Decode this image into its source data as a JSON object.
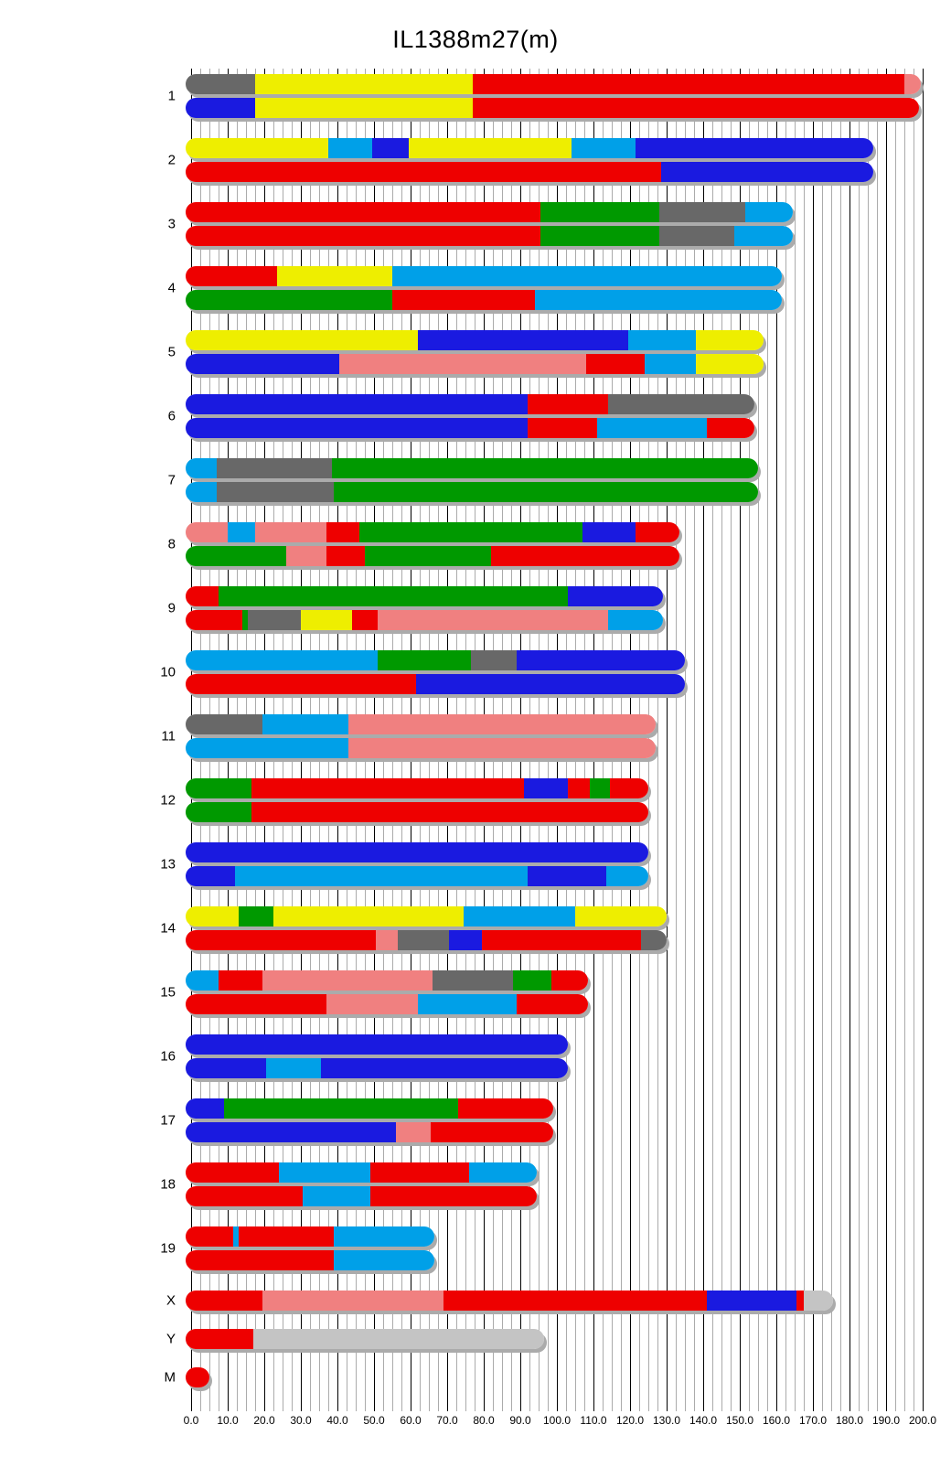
{
  "chart_data": {
    "type": "ideogram",
    "title": "IL1388m27(m)",
    "x_axis": {
      "min": 0,
      "max": 200,
      "minor_step": 2.5,
      "major_step": 10,
      "tick_labels": [
        "0.0",
        "10.0",
        "20.0",
        "30.0",
        "40.0",
        "50.0",
        "60.0",
        "70.0",
        "80.0",
        "90.0",
        "100.0",
        "110.0",
        "120.0",
        "130.0",
        "140.0",
        "150.0",
        "160.0",
        "170.0",
        "180.0",
        "190.0",
        "200.0"
      ],
      "minor_grid_color": "#ababab",
      "major_grid_color": "#000000"
    },
    "palette": {
      "red": "#ee0000",
      "blue": "#1a1ae0",
      "yellow": "#eeee00",
      "green": "#009900",
      "cyan": "#00a0e8",
      "pink": "#f08080",
      "gray": "#686868",
      "lightgray": "#c4c4c4"
    },
    "units": "Mb",
    "chromosomes": [
      {
        "name": "1",
        "bars": [
          [
            [
              "gray",
              0,
              17.5
            ],
            [
              "yellow",
              17.5,
              77
            ],
            [
              "red",
              77,
              195
            ],
            [
              "pink",
              195,
              198
            ]
          ],
          [
            [
              "blue",
              0,
              17.5
            ],
            [
              "yellow",
              17.5,
              77
            ],
            [
              "red",
              77,
              197.5
            ]
          ]
        ]
      },
      {
        "name": "2",
        "bars": [
          [
            [
              "yellow",
              0,
              37.5
            ],
            [
              "cyan",
              37.5,
              49.5
            ],
            [
              "blue",
              49.5,
              59.5
            ],
            [
              "yellow",
              59.5,
              104
            ],
            [
              "cyan",
              104,
              121.5
            ],
            [
              "blue",
              121.5,
              185
            ]
          ],
          [
            [
              "red",
              0,
              128.5
            ],
            [
              "blue",
              128.5,
              185
            ]
          ]
        ]
      },
      {
        "name": "3",
        "bars": [
          [
            [
              "red",
              0,
              95.5
            ],
            [
              "green",
              95.5,
              128
            ],
            [
              "gray",
              128,
              151.5
            ],
            [
              "cyan",
              151.5,
              163
            ]
          ],
          [
            [
              "red",
              0,
              95.5
            ],
            [
              "green",
              95.5,
              128
            ],
            [
              "gray",
              128,
              148.5
            ],
            [
              "cyan",
              148.5,
              163
            ]
          ]
        ]
      },
      {
        "name": "4",
        "bars": [
          [
            [
              "red",
              0,
              23.5
            ],
            [
              "yellow",
              23.5,
              55
            ],
            [
              "cyan",
              55,
              160
            ]
          ],
          [
            [
              "green",
              0,
              55
            ],
            [
              "red",
              55,
              94
            ],
            [
              "cyan",
              94,
              160
            ]
          ]
        ]
      },
      {
        "name": "5",
        "bars": [
          [
            [
              "yellow",
              0,
              62
            ],
            [
              "blue",
              62,
              119.5
            ],
            [
              "cyan",
              119.5,
              138
            ],
            [
              "yellow",
              138,
              155
            ]
          ],
          [
            [
              "blue",
              0,
              40.5
            ],
            [
              "pink",
              40.5,
              108
            ],
            [
              "red",
              108,
              124
            ],
            [
              "cyan",
              124,
              138
            ],
            [
              "yellow",
              138,
              155
            ]
          ]
        ]
      },
      {
        "name": "6",
        "bars": [
          [
            [
              "blue",
              0,
              92
            ],
            [
              "red",
              92,
              114
            ],
            [
              "gray",
              114,
              152.5
            ]
          ],
          [
            [
              "blue",
              0,
              92
            ],
            [
              "red",
              92,
              111
            ],
            [
              "cyan",
              111,
              141
            ],
            [
              "red",
              141,
              152.5
            ]
          ]
        ]
      },
      {
        "name": "7",
        "bars": [
          [
            [
              "cyan",
              0,
              7
            ],
            [
              "gray",
              7,
              38.5
            ],
            [
              "green",
              38.5,
              153.5
            ]
          ],
          [
            [
              "cyan",
              0,
              7
            ],
            [
              "gray",
              7,
              39
            ],
            [
              "green",
              39,
              153.5
            ]
          ]
        ]
      },
      {
        "name": "8",
        "bars": [
          [
            [
              "pink",
              0,
              10
            ],
            [
              "cyan",
              10,
              17.5
            ],
            [
              "pink",
              17.5,
              37
            ],
            [
              "red",
              37,
              46
            ],
            [
              "green",
              46,
              107
            ],
            [
              "blue",
              107,
              121.5
            ],
            [
              "red",
              121.5,
              132
            ]
          ],
          [
            [
              "green",
              0,
              26
            ],
            [
              "pink",
              26,
              37
            ],
            [
              "red",
              37,
              47.5
            ],
            [
              "green",
              47.5,
              82
            ],
            [
              "red",
              82,
              132
            ]
          ]
        ]
      },
      {
        "name": "9",
        "bars": [
          [
            [
              "red",
              0,
              7.5
            ],
            [
              "green",
              7.5,
              103
            ],
            [
              "blue",
              103,
              127.5
            ]
          ],
          [
            [
              "red",
              0,
              14
            ],
            [
              "green",
              14,
              15.5
            ],
            [
              "gray",
              15.5,
              30
            ],
            [
              "yellow",
              30,
              44
            ],
            [
              "red",
              44,
              51
            ],
            [
              "pink",
              51,
              114
            ],
            [
              "cyan",
              114,
              127.5
            ]
          ]
        ]
      },
      {
        "name": "10",
        "bars": [
          [
            [
              "cyan",
              0,
              51
            ],
            [
              "green",
              51,
              76.5
            ],
            [
              "gray",
              76.5,
              89
            ],
            [
              "blue",
              89,
              133.5
            ]
          ],
          [
            [
              "red",
              0,
              61.5
            ],
            [
              "blue",
              61.5,
              133.5
            ]
          ]
        ]
      },
      {
        "name": "11",
        "bars": [
          [
            [
              "gray",
              0,
              19.5
            ],
            [
              "cyan",
              19.5,
              43
            ],
            [
              "pink",
              43,
              125.5
            ]
          ],
          [
            [
              "cyan",
              0,
              43
            ],
            [
              "pink",
              43,
              125.5
            ]
          ]
        ]
      },
      {
        "name": "12",
        "bars": [
          [
            [
              "green",
              0,
              16.5
            ],
            [
              "red",
              16.5,
              91
            ],
            [
              "blue",
              91,
              103
            ],
            [
              "red",
              103,
              109
            ],
            [
              "green",
              109,
              114.5
            ],
            [
              "red",
              114.5,
              123.5
            ]
          ],
          [
            [
              "green",
              0,
              16.5
            ],
            [
              "red",
              16.5,
              123.5
            ]
          ]
        ]
      },
      {
        "name": "13",
        "bars": [
          [
            [
              "blue",
              0,
              123.5
            ]
          ],
          [
            [
              "blue",
              0,
              12
            ],
            [
              "cyan",
              12,
              92
            ],
            [
              "blue",
              92,
              113.5
            ],
            [
              "cyan",
              113.5,
              123.5
            ]
          ]
        ]
      },
      {
        "name": "14",
        "bars": [
          [
            [
              "yellow",
              0,
              13
            ],
            [
              "green",
              13,
              22.5
            ],
            [
              "yellow",
              22.5,
              74.5
            ],
            [
              "cyan",
              74.5,
              105
            ],
            [
              "yellow",
              105,
              128.5
            ]
          ],
          [
            [
              "red",
              0,
              50.5
            ],
            [
              "pink",
              50.5,
              56.5
            ],
            [
              "gray",
              56.5,
              70.5
            ],
            [
              "blue",
              70.5,
              79.5
            ],
            [
              "red",
              79.5,
              123
            ],
            [
              "gray",
              123,
              128.5
            ]
          ]
        ]
      },
      {
        "name": "15",
        "bars": [
          [
            [
              "cyan",
              0,
              7.5
            ],
            [
              "red",
              7.5,
              19.5
            ],
            [
              "pink",
              19.5,
              66
            ],
            [
              "gray",
              66,
              88
            ],
            [
              "green",
              88,
              98.5
            ],
            [
              "red",
              98.5,
              107
            ]
          ],
          [
            [
              "red",
              0,
              37
            ],
            [
              "pink",
              37,
              62
            ],
            [
              "cyan",
              62,
              89
            ],
            [
              "red",
              89,
              107
            ]
          ]
        ]
      },
      {
        "name": "16",
        "bars": [
          [
            [
              "blue",
              0,
              101.5
            ]
          ],
          [
            [
              "blue",
              0,
              20.5
            ],
            [
              "cyan",
              20.5,
              35.5
            ],
            [
              "blue",
              35.5,
              101.5
            ]
          ]
        ]
      },
      {
        "name": "17",
        "bars": [
          [
            [
              "blue",
              0,
              9
            ],
            [
              "green",
              9,
              73
            ],
            [
              "red",
              73,
              97.5
            ]
          ],
          [
            [
              "blue",
              0,
              56
            ],
            [
              "pink",
              56,
              65.5
            ],
            [
              "red",
              65.5,
              97.5
            ]
          ]
        ]
      },
      {
        "name": "18",
        "bars": [
          [
            [
              "red",
              0,
              24
            ],
            [
              "cyan",
              24,
              49
            ],
            [
              "red",
              49,
              76
            ],
            [
              "cyan",
              76,
              93
            ]
          ],
          [
            [
              "red",
              0,
              30.5
            ],
            [
              "cyan",
              30.5,
              49
            ],
            [
              "red",
              49,
              93
            ]
          ]
        ]
      },
      {
        "name": "19",
        "bars": [
          [
            [
              "red",
              0,
              11.5
            ],
            [
              "cyan",
              11.5,
              13
            ],
            [
              "red",
              13,
              39
            ],
            [
              "cyan",
              39,
              65
            ]
          ],
          [
            [
              "red",
              0,
              39
            ],
            [
              "cyan",
              39,
              65
            ]
          ]
        ]
      },
      {
        "name": "X",
        "bars": [
          [
            [
              "red",
              0,
              19.5
            ],
            [
              "pink",
              19.5,
              69
            ],
            [
              "red",
              69,
              141
            ],
            [
              "blue",
              141,
              165.5
            ],
            [
              "red",
              165.5,
              167.5
            ],
            [
              "lightgray",
              167.5,
              174
            ]
          ]
        ]
      },
      {
        "name": "Y",
        "bars": [
          [
            [
              "red",
              0,
              17
            ],
            [
              "lightgray",
              17,
              95
            ]
          ]
        ]
      },
      {
        "name": "M",
        "bars": [
          [
            [
              "red",
              0,
              3.5
            ]
          ]
        ]
      }
    ]
  }
}
